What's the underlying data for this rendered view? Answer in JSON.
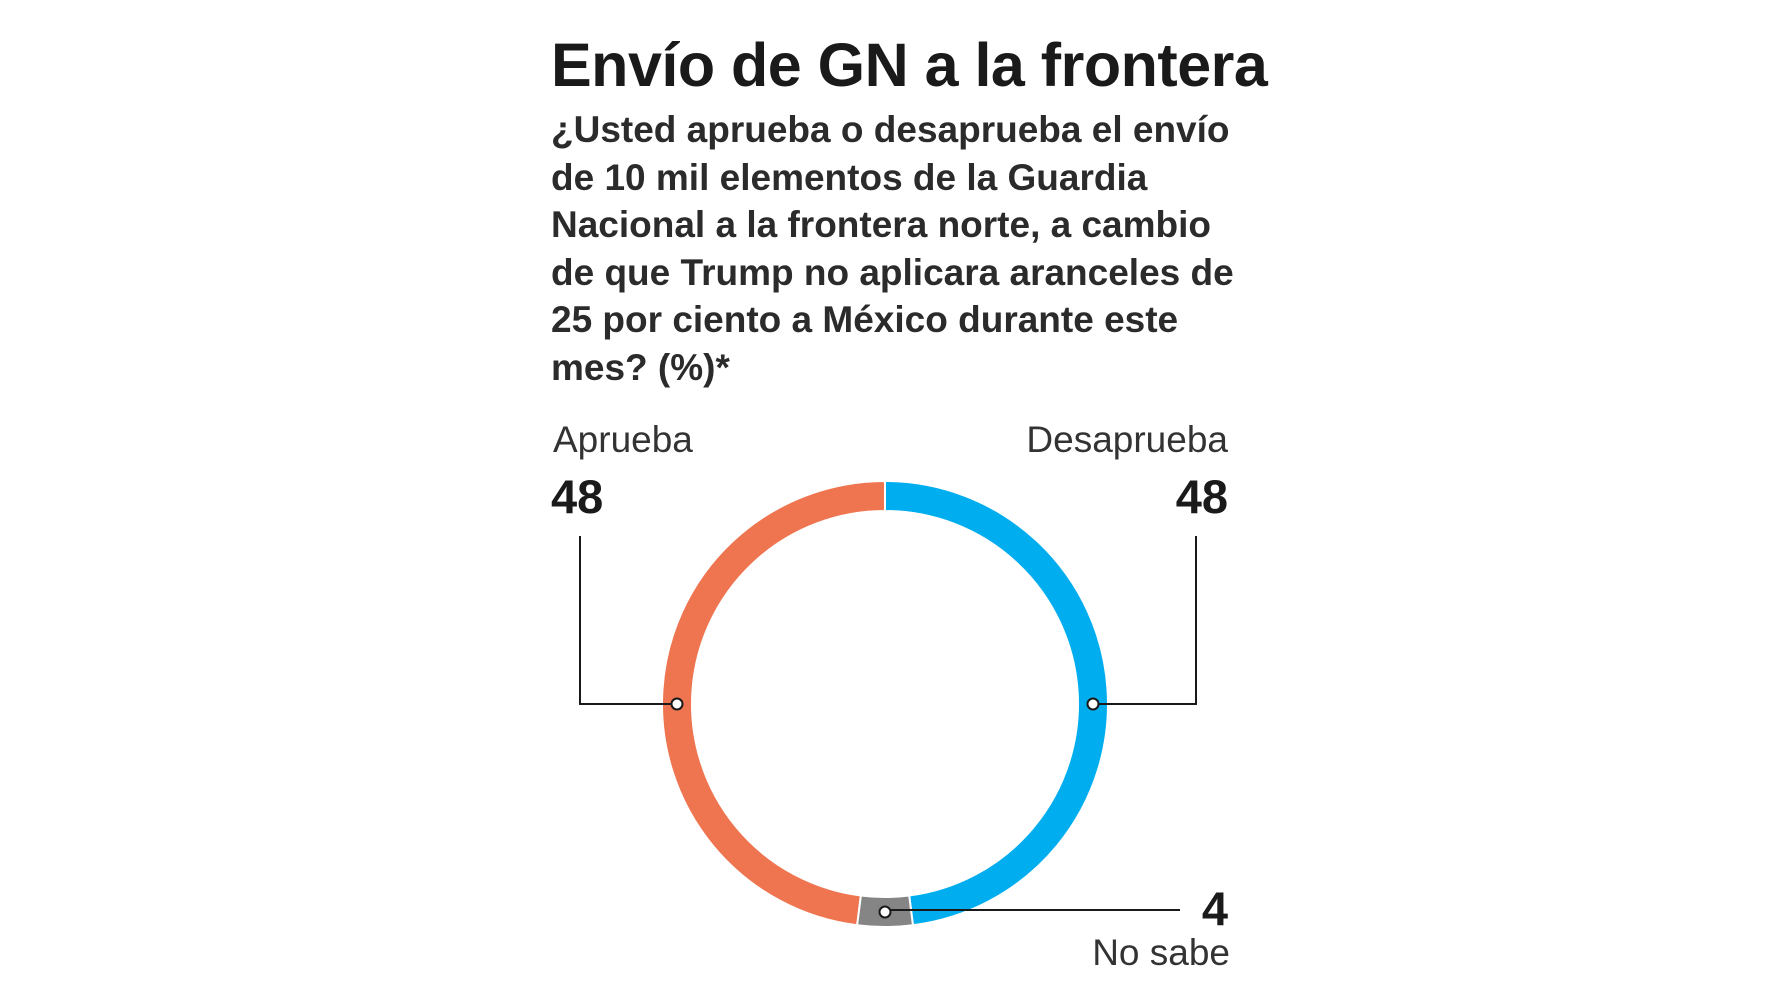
{
  "title": "Envío de GN a la frontera",
  "subtitle": "¿Usted aprueba o desaprueba el envío de 10 mil elementos de la Guardia Nacional a la frontera norte, a cambio de que Trump no aplicara aranceles de 25 por ciento a México durante este mes? (%)*",
  "chart_data": {
    "type": "pie",
    "donut": true,
    "title": "Envío de GN a la frontera",
    "unit": "%",
    "slices": [
      {
        "label": "Desaprueba",
        "value": 48,
        "color": "#00AEEF"
      },
      {
        "label": "No sabe",
        "value": 4,
        "color": "#858585"
      },
      {
        "label": "Aprueba",
        "value": 48,
        "color": "#EE7550"
      }
    ]
  }
}
